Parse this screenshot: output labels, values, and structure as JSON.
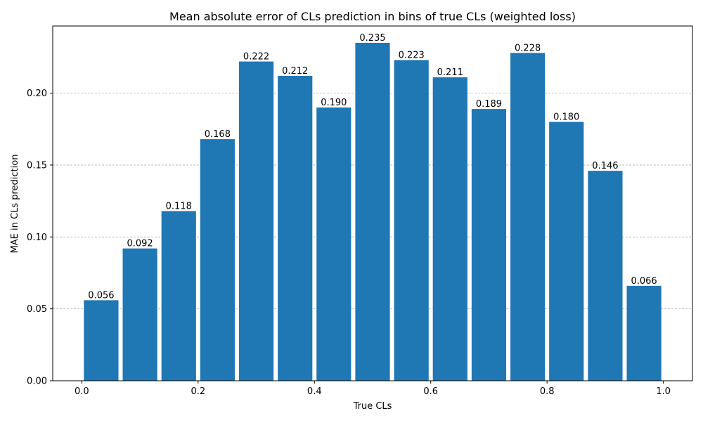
{
  "chart_data": {
    "type": "bar",
    "title": "Mean absolute error of CLs prediction in bins of true CLs (weighted loss)",
    "xlabel": "True CLs",
    "ylabel": "MAE in CLs prediction",
    "bin_width": 0.0667,
    "bin_centers": [
      0.0333,
      0.1,
      0.1667,
      0.2333,
      0.3,
      0.3667,
      0.4333,
      0.5,
      0.5667,
      0.6333,
      0.7,
      0.7667,
      0.8333,
      0.9,
      0.9667
    ],
    "values": [
      0.056,
      0.092,
      0.118,
      0.168,
      0.222,
      0.212,
      0.19,
      0.235,
      0.223,
      0.211,
      0.189,
      0.228,
      0.18,
      0.146,
      0.066
    ],
    "value_labels": [
      "0.056",
      "0.092",
      "0.118",
      "0.168",
      "0.222",
      "0.212",
      "0.190",
      "0.235",
      "0.223",
      "0.211",
      "0.189",
      "0.228",
      "0.180",
      "0.146",
      "0.066"
    ],
    "xlim": [
      -0.05,
      1.05
    ],
    "ylim": [
      0,
      0.2467
    ],
    "x_ticks": [
      0.0,
      0.2,
      0.4,
      0.6,
      0.8,
      1.0
    ],
    "x_tick_labels": [
      "0.0",
      "0.2",
      "0.4",
      "0.6",
      "0.8",
      "1.0"
    ],
    "y_ticks": [
      0.0,
      0.05,
      0.1,
      0.15,
      0.2
    ],
    "y_tick_labels": [
      "0.00",
      "0.05",
      "0.10",
      "0.15",
      "0.20"
    ],
    "grid": "y-dashed",
    "bar_color": "#1f77b4",
    "grid_color": "#b0b0b0"
  }
}
